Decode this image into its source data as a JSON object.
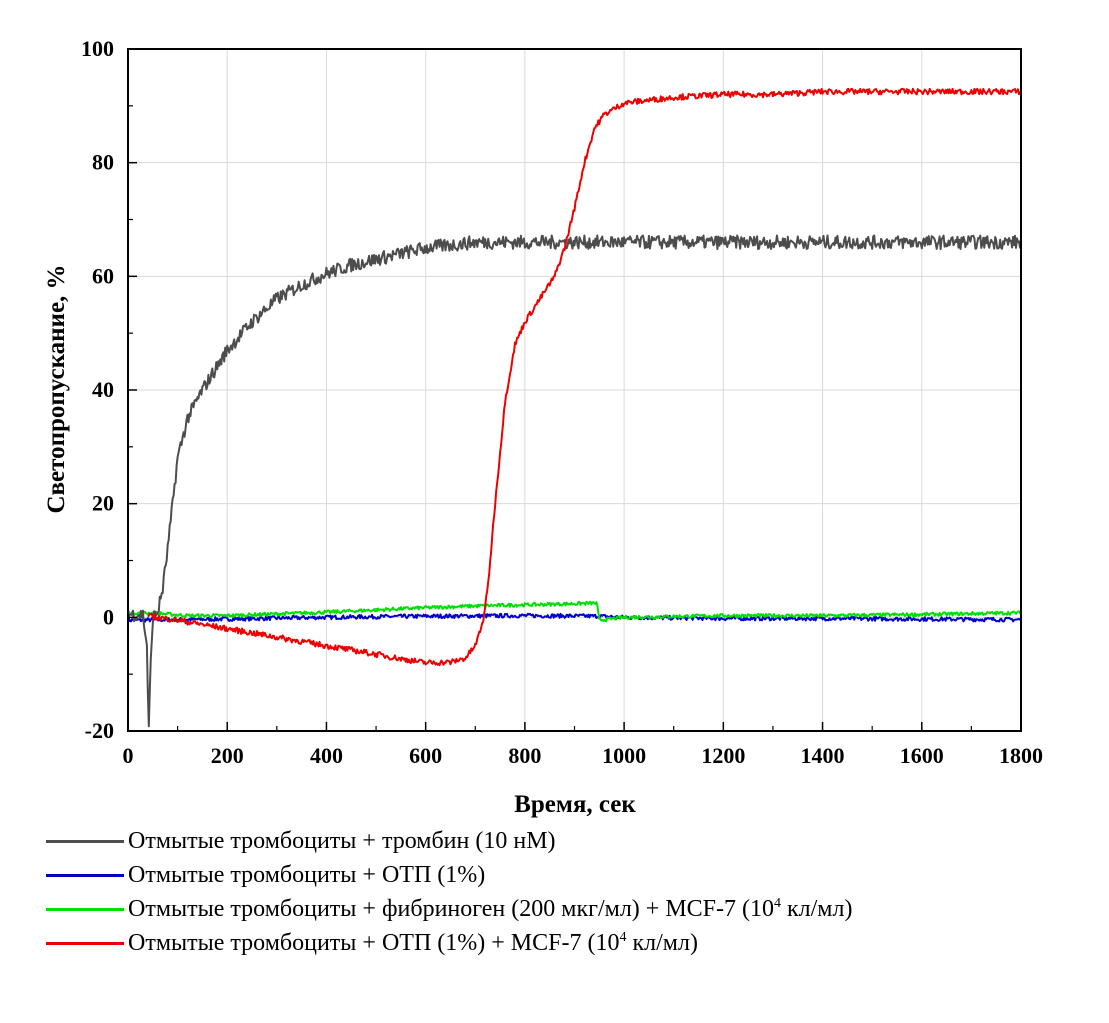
{
  "chart_data": {
    "type": "line",
    "xlabel": "Время, сек",
    "ylabel": "Светопропускание, %",
    "xlim": [
      0,
      1800
    ],
    "ylim": [
      -20,
      100
    ],
    "xticks": [
      "0",
      "200",
      "400",
      "600",
      "800",
      "1000",
      "1200",
      "1400",
      "1600",
      "1800"
    ],
    "yticks": [
      "-20",
      "0",
      "20",
      "40",
      "60",
      "80",
      "100"
    ],
    "grid": true,
    "legend_position": "bottom",
    "series": [
      {
        "name": "Отмытые тромбоциты + тромбин (10 нМ)",
        "color": "#4d4d4d",
        "noise": 1.2,
        "x": [
          0,
          30,
          38,
          42,
          45,
          50,
          60,
          70,
          80,
          90,
          100,
          120,
          150,
          200,
          250,
          300,
          350,
          400,
          450,
          500,
          550,
          600,
          650,
          700,
          800,
          900,
          1000,
          1200,
          1400,
          1600,
          1800
        ],
        "y": [
          0.5,
          0.5,
          -5,
          -20,
          -10,
          0,
          1,
          5,
          12,
          20,
          28,
          35,
          40,
          47,
          52,
          56,
          58.5,
          60.5,
          62,
          63,
          64,
          65,
          65.5,
          66,
          66,
          66,
          66,
          66,
          66,
          66,
          66
        ]
      },
      {
        "name": "Отмытые тромбоциты + ОТП (1%)",
        "color": "#0000cc",
        "noise": 0.35,
        "x": [
          0,
          200,
          400,
          600,
          800,
          950,
          1000,
          1200,
          1400,
          1600,
          1800
        ],
        "y": [
          -0.5,
          -0.3,
          0,
          0.2,
          0.3,
          0.2,
          0,
          -0.2,
          -0.2,
          -0.3,
          -0.4
        ]
      },
      {
        "name": "Отмытые тромбоциты + фибриноген (200 мкг/мл) + MCF-7 (10",
        "name_sup": "4",
        "name_tail": " кл/мл)",
        "color": "#00e000",
        "noise": 0.3,
        "x": [
          0,
          60,
          120,
          200,
          300,
          400,
          500,
          600,
          700,
          800,
          900,
          945,
          950,
          1000,
          1200,
          1400,
          1600,
          1800
        ],
        "y": [
          0.8,
          0.7,
          0.3,
          0.3,
          0.6,
          0.9,
          1.3,
          1.7,
          2.0,
          2.2,
          2.4,
          2.5,
          -0.5,
          0,
          0.3,
          0.3,
          0.5,
          0.8
        ]
      },
      {
        "name": "Отмытые тромбоциты + ОТП (1%) + MCF-7 (10",
        "name_sup": "4",
        "name_tail": " кл/мл)",
        "color": "#ee0000",
        "noise": 0.5,
        "x": [
          40,
          100,
          200,
          300,
          400,
          500,
          550,
          600,
          650,
          680,
          700,
          715,
          725,
          740,
          760,
          780,
          800,
          830,
          860,
          880,
          900,
          920,
          940,
          960,
          1000,
          1100,
          1200,
          1300,
          1400,
          1500,
          1800
        ],
        "y": [
          0.2,
          -0.5,
          -2,
          -3.5,
          -5,
          -6.5,
          -7.3,
          -8,
          -7.9,
          -7.2,
          -5,
          -1,
          5,
          20,
          38,
          48,
          52,
          56,
          60,
          65,
          72,
          80,
          86,
          88.5,
          90.5,
          91.5,
          92,
          92,
          92.5,
          92.5,
          92.5
        ]
      }
    ]
  }
}
